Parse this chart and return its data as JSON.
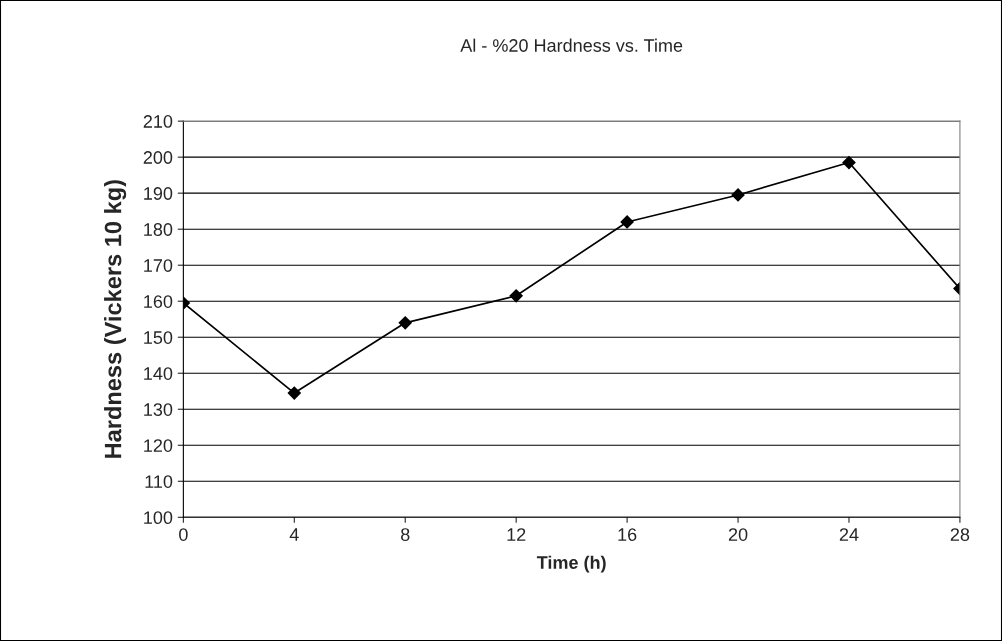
{
  "chart_data": {
    "type": "line",
    "title": "Al - %20 Hardness vs. Time",
    "xlabel": "Time (h)",
    "ylabel": "Hardness (Vickers 10 kg)",
    "x": [
      0,
      4,
      8,
      12,
      16,
      20,
      24,
      28
    ],
    "series": [
      {
        "color": "#000000",
        "values": [
          159.5,
          134.5,
          154,
          161.5,
          182,
          189.5,
          198.5,
          163.5
        ]
      }
    ],
    "xlim": [
      0,
      28
    ],
    "xticks": [
      0,
      4,
      8,
      12,
      16,
      20,
      24,
      28
    ],
    "ylim": [
      100,
      210
    ],
    "yticks": [
      100,
      110,
      120,
      130,
      140,
      150,
      160,
      170,
      180,
      190,
      200,
      210
    ],
    "grid": "y",
    "marker": "diamond",
    "line_style": "solid"
  }
}
